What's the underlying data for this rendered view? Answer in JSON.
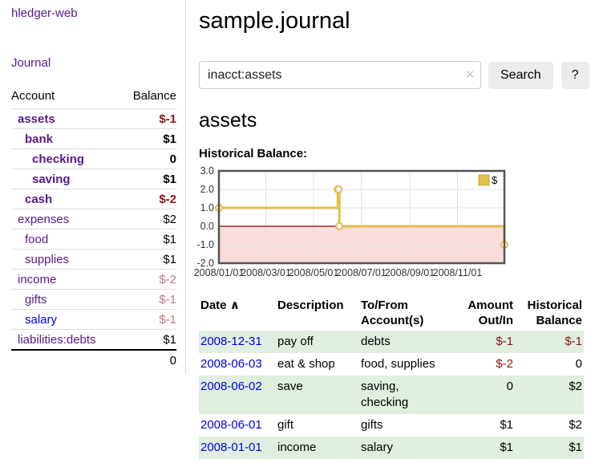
{
  "brand": "hledger-web",
  "nav": {
    "journal": "Journal"
  },
  "sidebar": {
    "header": {
      "account": "Account",
      "balance": "Balance"
    },
    "accounts": [
      {
        "name": "assets",
        "balance": "$-1"
      },
      {
        "name": "bank",
        "balance": "$1"
      },
      {
        "name": "checking",
        "balance": "0"
      },
      {
        "name": "saving",
        "balance": "$1"
      },
      {
        "name": "cash",
        "balance": "$-2"
      },
      {
        "name": "expenses",
        "balance": "$2"
      },
      {
        "name": "food",
        "balance": "$1"
      },
      {
        "name": "supplies",
        "balance": "$1"
      },
      {
        "name": "income",
        "balance": "$-2"
      },
      {
        "name": "gifts",
        "balance": "$-1"
      },
      {
        "name": "salary",
        "balance": "$-1"
      },
      {
        "name": "liabilities:debts",
        "balance": "$1"
      }
    ],
    "total": "0"
  },
  "main": {
    "title": "sample.journal",
    "search": {
      "value": "inacct:assets",
      "clear": "×",
      "submit": "Search",
      "help": "?"
    },
    "heading": "assets",
    "chart_title": "Historical Balance:"
  },
  "chart_data": {
    "type": "line",
    "step": true,
    "title": "Historical Balance of assets",
    "legend_position": "top-right",
    "grid": true,
    "series": [
      {
        "name": "$",
        "x_dates": [
          "2008-01-01",
          "2008-06-01",
          "2008-06-02",
          "2008-06-03",
          "2008-12-31"
        ],
        "x_days": [
          0,
          152,
          153,
          154,
          365
        ],
        "values": [
          1,
          2,
          2,
          0,
          -1
        ]
      }
    ],
    "x_domain_days": [
      0,
      365
    ],
    "ylim": [
      -2,
      3
    ],
    "y_ticks": [
      3,
      2,
      1,
      0,
      -1,
      -2
    ],
    "y_tick_labels": [
      "3.0",
      "2.0",
      "1.0",
      "0.0",
      "-1.0",
      "-2.0"
    ],
    "x_ticks": [
      {
        "day": 0,
        "label": "2008/01/01"
      },
      {
        "day": 60,
        "label": "2008/03/01"
      },
      {
        "day": 121,
        "label": "2008/05/01"
      },
      {
        "day": 182,
        "label": "2008/07/01"
      },
      {
        "day": 244,
        "label": "2008/09/01"
      },
      {
        "day": 305,
        "label": "2008/11/01"
      }
    ],
    "colors": {
      "line": "#e3bd4e",
      "marker_fill": "#ffffff",
      "negative_region": "#fadcdc",
      "zero_line": "#8b0000",
      "grid": "#e2e2e2",
      "border": "#545454",
      "legend_border": "#c9a83c",
      "label_text": "#333333"
    }
  },
  "register": {
    "headers": {
      "date": "Date",
      "sort": "∧",
      "description": "Description",
      "accounts": "To/From Account(s)",
      "amount": "Amount Out/In",
      "balance": "Historical Balance"
    },
    "rows": [
      {
        "date": "2008-12-31",
        "description": "pay off",
        "accounts": "debts",
        "amount": "$-1",
        "balance": "$-1"
      },
      {
        "date": "2008-06-03",
        "description": "eat & shop",
        "accounts": "food, supplies",
        "amount": "$-2",
        "balance": "0"
      },
      {
        "date": "2008-06-02",
        "description": "save",
        "accounts": "saving, checking",
        "amount": "0",
        "balance": "$2"
      },
      {
        "date": "2008-06-01",
        "description": "gift",
        "accounts": "gifts",
        "amount": "$1",
        "balance": "$2"
      },
      {
        "date": "2008-01-01",
        "description": "income",
        "accounts": "salary",
        "amount": "$1",
        "balance": "$1"
      }
    ]
  }
}
